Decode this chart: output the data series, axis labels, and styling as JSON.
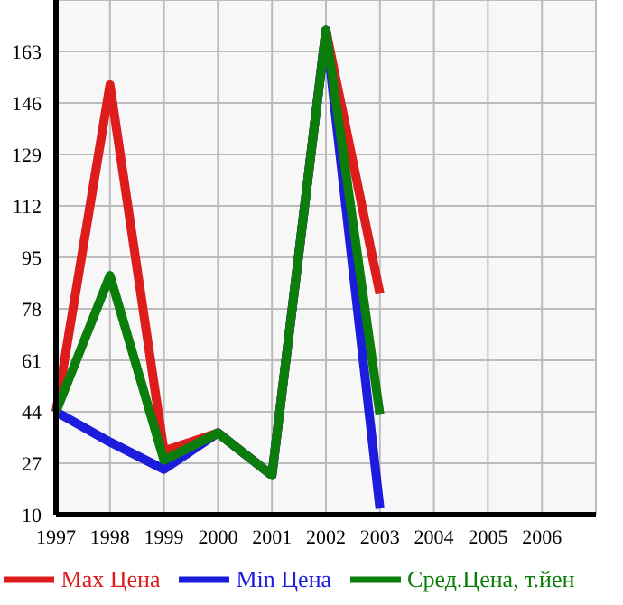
{
  "chart_data": {
    "type": "line",
    "categories": [
      "1997",
      "1998",
      "1999",
      "2000",
      "2001",
      "2002",
      "2003",
      "2004",
      "2005",
      "2006",
      null
    ],
    "series": [
      {
        "name": "Max Цена",
        "color": "#dd1c1c",
        "values": [
          44,
          152,
          31,
          37,
          23,
          170,
          83,
          null,
          null,
          null,
          null
        ]
      },
      {
        "name": "Min Цена",
        "color": "#1c1cdd",
        "values": [
          44,
          34,
          25,
          37,
          23,
          170,
          12,
          null,
          null,
          null,
          null
        ]
      },
      {
        "name": "Сред.Цена, т.йен",
        "color": "#0a7d0a",
        "values": [
          44,
          89,
          28,
          37,
          23,
          170,
          43,
          null,
          null,
          null,
          null
        ]
      }
    ],
    "ylim": [
      10,
      180
    ],
    "yticks": [
      10,
      27,
      44,
      61,
      78,
      95,
      112,
      129,
      146,
      163,
      {
        "value": 180,
        "label": null
      }
    ],
    "grid": true,
    "legend": "bottom",
    "marker": "none",
    "line_style": "solid"
  }
}
